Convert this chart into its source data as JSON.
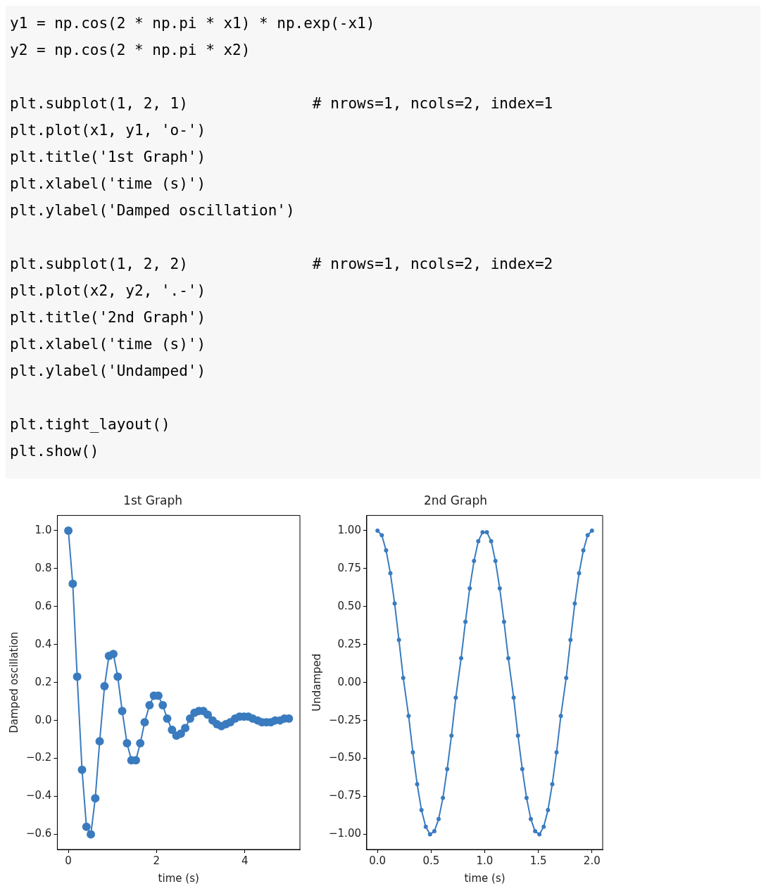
{
  "chart_data": [
    {
      "type": "line",
      "title": "1st Graph",
      "xlabel": "time (s)",
      "ylabel": "Damped oscillation",
      "marker": "circle",
      "line_style": "solid",
      "grid": false,
      "legend": false,
      "annotations": [
        "y1 = np.cos(2 * np.pi * x1) * np.exp(-x1)\ny2 = np.cos(2 * np.pi * x2)",
        "plt.subplot(1, 2, 1)              # nrows=1, ncols=2, index=1\nplt.plot(x1, y1, 'o-')\nplt.title('1st Graph')\nplt.xlabel('time (s)')\nplt.ylabel('Damped oscillation')",
        "plt.subplot(1, 2, 2)              # nrows=1, ncols=2, index=2\nplt.plot(x2, y2, '.-')\nplt.title('2nd Graph')\nplt.xlabel('time (s)')\nplt.ylabel('Undamped')",
        "plt.tight_layout()\nplt.show()"
      ],
      "x": [
        0,
        0.1,
        0.2,
        0.31,
        0.41,
        0.51,
        0.61,
        0.71,
        0.82,
        0.92,
        1.02,
        1.12,
        1.22,
        1.33,
        1.43,
        1.53,
        1.63,
        1.73,
        1.84,
        1.94,
        2.04,
        2.14,
        2.24,
        2.35,
        2.45,
        2.55,
        2.65,
        2.76,
        2.86,
        2.96,
        3.06,
        3.16,
        3.27,
        3.37,
        3.47,
        3.57,
        3.67,
        3.78,
        3.88,
        3.98,
        4.08,
        4.18,
        4.29,
        4.39,
        4.49,
        4.59,
        4.69,
        4.8,
        4.9,
        5.0
      ],
      "series": [
        {
          "color": "#3a7bbf",
          "values": [
            1,
            0.72,
            0.23,
            -0.26,
            -0.56,
            -0.6,
            -0.41,
            -0.11,
            0.18,
            0.34,
            0.35,
            0.23,
            0.05,
            -0.12,
            -0.21,
            -0.21,
            -0.12,
            -0.01,
            0.08,
            0.13,
            0.13,
            0.08,
            0.01,
            -0.05,
            -0.08,
            -0.07,
            -0.04,
            0.01,
            0.04,
            0.05,
            0.05,
            0.03,
            0.0,
            -0.02,
            -0.03,
            -0.02,
            -0.01,
            0.01,
            0.02,
            0.02,
            0.02,
            0.01,
            0.0,
            -0.01,
            -0.01,
            -0.01,
            0.0,
            0.0,
            0.01,
            0.01
          ]
        }
      ],
      "xlim": [
        -0.25,
        5.25
      ],
      "xticks": [
        0,
        2,
        4
      ],
      "ylim": [
        -0.68,
        1.08
      ],
      "yticks": [
        {
          "value": -0.6,
          "label": "−0.6"
        },
        {
          "value": -0.4,
          "label": "−0.4"
        },
        {
          "value": -0.2,
          "label": "−0.2"
        },
        {
          "value": 0,
          "label": "0.0"
        },
        {
          "value": 0.2,
          "label": "0.2"
        },
        {
          "value": 0.4,
          "label": "0.4"
        },
        {
          "value": 0.6,
          "label": "0.6"
        },
        {
          "value": 0.8,
          "label": "0.8"
        },
        {
          "value": 1,
          "label": "1.0"
        }
      ]
    },
    {
      "type": "line",
      "title": "2nd Graph",
      "xlabel": "time (s)",
      "ylabel": "Undamped",
      "marker": "circle",
      "line_style": "solid",
      "grid": false,
      "legend": false,
      "x": [
        0,
        0.04,
        0.08,
        0.12,
        0.16,
        0.2,
        0.24,
        0.29,
        0.33,
        0.37,
        0.41,
        0.45,
        0.49,
        0.53,
        0.57,
        0.61,
        0.65,
        0.69,
        0.73,
        0.78,
        0.82,
        0.86,
        0.9,
        0.94,
        0.98,
        1.02,
        1.06,
        1.1,
        1.14,
        1.18,
        1.22,
        1.27,
        1.31,
        1.35,
        1.39,
        1.43,
        1.47,
        1.51,
        1.55,
        1.59,
        1.63,
        1.67,
        1.71,
        1.76,
        1.8,
        1.84,
        1.88,
        1.92,
        1.96,
        2.0
      ],
      "series": [
        {
          "color": "#3a7bbf",
          "values": [
            1,
            0.97,
            0.87,
            0.72,
            0.52,
            0.28,
            0.03,
            -0.22,
            -0.46,
            -0.67,
            -0.84,
            -0.95,
            -1.0,
            -0.98,
            -0.9,
            -0.76,
            -0.57,
            -0.35,
            -0.1,
            0.16,
            0.4,
            0.62,
            0.8,
            0.93,
            0.99,
            0.99,
            0.93,
            0.8,
            0.62,
            0.4,
            0.16,
            -0.1,
            -0.35,
            -0.57,
            -0.76,
            -0.9,
            -0.98,
            -1.0,
            -0.95,
            -0.84,
            -0.67,
            -0.46,
            -0.22,
            0.03,
            0.28,
            0.52,
            0.72,
            0.87,
            0.97,
            1
          ]
        }
      ],
      "xlim": [
        -0.1,
        2.1
      ],
      "xticks": [
        {
          "value": 0,
          "label": "0.0"
        },
        {
          "value": 0.5,
          "label": "0.5"
        },
        {
          "value": 1,
          "label": "1.0"
        },
        {
          "value": 1.5,
          "label": "1.5"
        },
        {
          "value": 2,
          "label": "2.0"
        }
      ],
      "ylim": [
        -1.1,
        1.1
      ],
      "yticks": [
        {
          "value": -1,
          "label": "−1.00"
        },
        {
          "value": -0.75,
          "label": "−0.75"
        },
        {
          "value": -0.5,
          "label": "−0.50"
        },
        {
          "value": -0.25,
          "label": "−0.25"
        },
        {
          "value": 0,
          "label": "0.00"
        },
        {
          "value": 0.25,
          "label": "0.25"
        },
        {
          "value": 0.5,
          "label": "0.50"
        },
        {
          "value": 0.75,
          "label": "0.75"
        },
        {
          "value": 1,
          "label": "1.00"
        }
      ]
    }
  ]
}
